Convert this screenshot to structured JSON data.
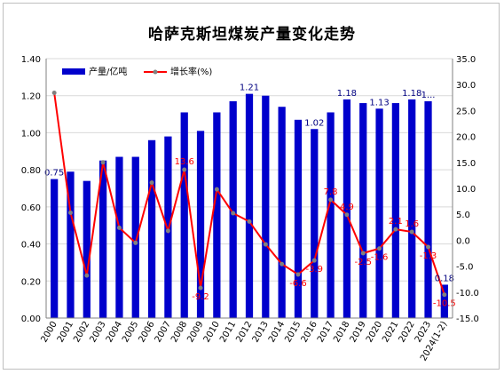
{
  "chart_data": {
    "type": "bar+line",
    "title": "哈萨克斯坦煤炭产量变化走势",
    "categories": [
      "2000",
      "2001",
      "2002",
      "2003",
      "2004",
      "2005",
      "2006",
      "2007",
      "2008",
      "2009",
      "2010",
      "2011",
      "2012",
      "2013",
      "2014",
      "2015",
      "2016",
      "2017",
      "2018",
      "2019",
      "2020",
      "2021",
      "2022",
      "2023",
      "2024(1-2)"
    ],
    "series": [
      {
        "name": "产量/亿吨",
        "type": "bar",
        "axis": "left",
        "color": "#0000CC",
        "values": [
          0.75,
          0.79,
          0.74,
          0.85,
          0.87,
          0.87,
          0.96,
          0.98,
          1.11,
          1.01,
          1.11,
          1.17,
          1.21,
          1.2,
          1.14,
          1.07,
          1.02,
          1.11,
          1.18,
          1.16,
          1.13,
          1.16,
          1.18,
          1.17,
          0.18
        ]
      },
      {
        "name": "增长率(%)",
        "type": "line",
        "axis": "right",
        "color": "#FF0000",
        "marker_color": "#808080",
        "values": [
          28.4,
          5.3,
          -6.8,
          15.0,
          2.4,
          -0.5,
          11.1,
          1.8,
          13.6,
          -9.2,
          9.8,
          5.2,
          3.6,
          -0.8,
          -4.6,
          -6.6,
          -3.9,
          7.8,
          4.9,
          -2.5,
          -1.6,
          2.1,
          1.6,
          -1.3,
          -10.5
        ]
      }
    ],
    "bar_labels": [
      {
        "index": 0,
        "text": "0.75"
      },
      {
        "index": 12,
        "text": "1.21"
      },
      {
        "index": 16,
        "text": "1.02"
      },
      {
        "index": 18,
        "text": "1.18"
      },
      {
        "index": 20,
        "text": "1.13"
      },
      {
        "index": 22,
        "text": "1.18"
      },
      {
        "index": 23,
        "text": "1..."
      },
      {
        "index": 24,
        "text": "0.18"
      }
    ],
    "line_labels": [
      {
        "index": 8,
        "text": "13.6"
      },
      {
        "index": 9,
        "text": "-9.2"
      },
      {
        "index": 15,
        "text": "-6.6"
      },
      {
        "index": 16,
        "text": "-3.9"
      },
      {
        "index": 17,
        "text": "7.8"
      },
      {
        "index": 18,
        "text": "4.9"
      },
      {
        "index": 19,
        "text": "-2.5"
      },
      {
        "index": 20,
        "text": "-1.6"
      },
      {
        "index": 21,
        "text": "2.1"
      },
      {
        "index": 22,
        "text": "1.6"
      },
      {
        "index": 23,
        "text": "-1.3"
      },
      {
        "index": 24,
        "text": "-10.5"
      }
    ],
    "left_axis": {
      "min": 0,
      "max": 1.4,
      "ticks": [
        "0.00",
        "0.20",
        "0.40",
        "0.60",
        "0.80",
        "1.00",
        "1.20",
        "1.40"
      ]
    },
    "right_axis": {
      "min": -15,
      "max": 35,
      "ticks": [
        "-15.0",
        "-10.0",
        "-5.0",
        "0.0",
        "5.0",
        "10.0",
        "15.0",
        "20.0",
        "25.0",
        "30.0",
        "35.0"
      ]
    },
    "grid": true,
    "legend_position": "top-left"
  }
}
